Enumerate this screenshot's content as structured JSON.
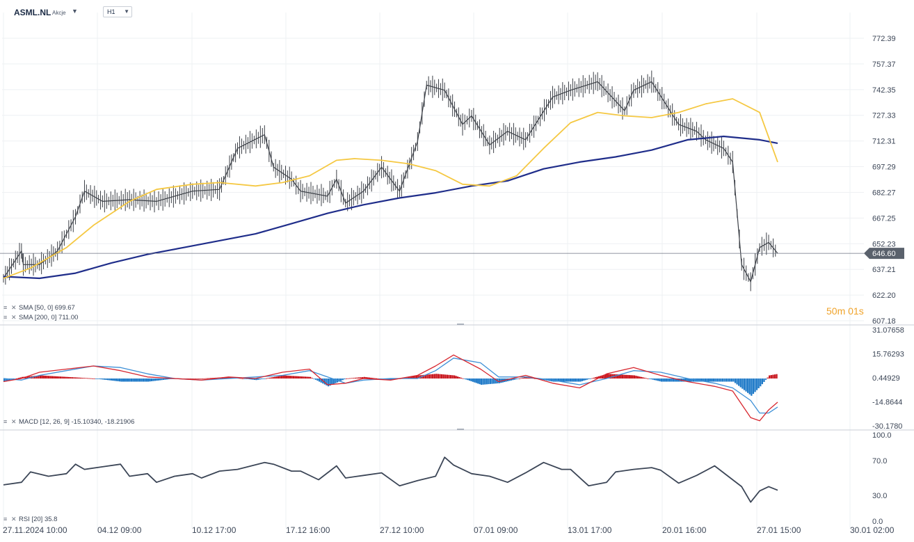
{
  "header": {
    "symbol": "ASML.NL",
    "symbol_type": "Akcje",
    "timeframe": "H1"
  },
  "timer": "50m 01s",
  "price_panel": {
    "last_price_label": "646.60",
    "last_price": 646.6,
    "yticks": [
      "772.39",
      "757.37",
      "742.35",
      "727.33",
      "712.31",
      "697.29",
      "682.27",
      "667.25",
      "652.23",
      "637.21",
      "622.20",
      "607.18"
    ],
    "ylim": [
      607.18,
      772.39
    ],
    "legend": [
      {
        "label": "SMA  [50, 0]  699.67",
        "color": "#f5c842"
      },
      {
        "label": "SMA  [200, 0]  711.00",
        "color": "#1f2d8a"
      }
    ]
  },
  "macd_panel": {
    "yticks": [
      "31.07658",
      "15.76293",
      "0.44929",
      "-14.8644",
      "-30.1780"
    ],
    "ylim": [
      -30.178,
      31.07658
    ],
    "legend": "MACD  [12, 26, 9]  -15.10340,  -18.21906",
    "colors": {
      "macd": "#d7262e",
      "signal": "#3c8fd6",
      "hist_pos": "#c8141c",
      "hist_neg": "#1f7ac8"
    }
  },
  "rsi_panel": {
    "yticks": [
      "100.0",
      "70.0",
      "30.0",
      "0.0"
    ],
    "ylim": [
      0,
      100
    ],
    "legend": "RSI  [20]  35.8",
    "color": "#3b4556"
  },
  "xaxis": {
    "labels": [
      "27.11.2024  10:00",
      "04.12  09:00",
      "10.12  17:00",
      "17.12  16:00",
      "27.12  10:00",
      "07.01  09:00",
      "13.01  17:00",
      "20.01  16:00",
      "27.01  15:00",
      "30.01  02:00"
    ]
  },
  "chart_data": [
    {
      "type": "line",
      "title": "",
      "ylim": [
        607.18,
        772.39
      ],
      "series": [
        {
          "name": "SMA [50, 0]",
          "color": "#f5c842",
          "x": [
            0,
            3,
            7,
            10,
            14,
            17,
            21,
            24,
            28,
            31,
            34,
            37,
            39,
            42,
            45,
            48,
            51,
            54,
            57,
            60,
            63,
            66,
            69,
            72,
            75,
            78,
            81,
            84,
            86
          ],
          "values": [
            632,
            638,
            650,
            663,
            677,
            684,
            687,
            688,
            686,
            688,
            692,
            701,
            702,
            701,
            699,
            695,
            687,
            686,
            692,
            708,
            723,
            729,
            727,
            726,
            729,
            734,
            737,
            729,
            700
          ]
        },
        {
          "name": "SMA [200, 0]",
          "color": "#1f2d8a",
          "x": [
            0,
            4,
            8,
            12,
            16,
            20,
            24,
            28,
            32,
            36,
            40,
            44,
            48,
            52,
            56,
            60,
            64,
            68,
            72,
            76,
            80,
            84,
            86
          ],
          "values": [
            633,
            632,
            635,
            641,
            646,
            650,
            654,
            658,
            664,
            670,
            675,
            679,
            682,
            686,
            689,
            696,
            700,
            703,
            707,
            713,
            715,
            713,
            711
          ]
        },
        {
          "name": "Price",
          "color": "#333333",
          "x": [
            0,
            2,
            2.2,
            4,
            6,
            7,
            8,
            9,
            11,
            14,
            17,
            21,
            24,
            26,
            29,
            30,
            32,
            33,
            36,
            37,
            38,
            40,
            42,
            44,
            46,
            47,
            49,
            51,
            52,
            54,
            56,
            58,
            61,
            63,
            66,
            69,
            70,
            72,
            75,
            77,
            78,
            80,
            81,
            82,
            83,
            84,
            85,
            86
          ],
          "values": [
            632,
            648,
            640,
            640,
            648,
            658,
            668,
            683,
            677,
            678,
            677,
            683,
            684,
            708,
            716,
            697,
            690,
            683,
            680,
            690,
            676,
            683,
            697,
            683,
            712,
            745,
            742,
            722,
            727,
            710,
            718,
            713,
            738,
            742,
            747,
            730,
            742,
            747,
            722,
            718,
            713,
            708,
            700,
            640,
            630,
            650,
            653,
            646.6
          ]
        }
      ]
    },
    {
      "type": "bar",
      "title": "",
      "ylim": [
        -30.178,
        31.07658
      ],
      "series": [
        {
          "name": "MACD [12, 26, 9]",
          "x": [
            0,
            2,
            4,
            7,
            10,
            13,
            16,
            19,
            22,
            25,
            28,
            31,
            34,
            36,
            38,
            40,
            43,
            46,
            48,
            50,
            53,
            55,
            58,
            61,
            64,
            67,
            70,
            73,
            76,
            79,
            81,
            83,
            84,
            85,
            86
          ],
          "values": [
            -2,
            0,
            4,
            6,
            8,
            5,
            1,
            0,
            -1,
            1,
            0,
            4,
            6,
            -4,
            -3,
            0,
            -1,
            2,
            8,
            15,
            6,
            -2,
            2,
            -3,
            -6,
            3,
            7,
            2,
            -2,
            -5,
            -8,
            -25,
            -27,
            -20,
            -15.1
          ]
        },
        {
          "name": "Signal",
          "x": [
            0,
            2,
            4,
            7,
            10,
            13,
            16,
            19,
            22,
            25,
            28,
            31,
            34,
            36,
            38,
            40,
            43,
            46,
            48,
            50,
            53,
            55,
            58,
            61,
            64,
            67,
            70,
            73,
            76,
            79,
            81,
            83,
            84,
            85,
            86
          ],
          "values": [
            0,
            -1,
            2,
            5,
            8,
            7,
            3,
            0,
            -1,
            0,
            1,
            2,
            5,
            1,
            -3,
            -1,
            0,
            0,
            5,
            13,
            10,
            1,
            1,
            -1,
            -4,
            0,
            5,
            4,
            0,
            -3,
            -6,
            -14,
            -22,
            -22,
            -18.2
          ]
        },
        {
          "name": "Histogram",
          "x": [
            0,
            2,
            4,
            7,
            10,
            13,
            16,
            19,
            22,
            25,
            28,
            31,
            34,
            36,
            38,
            40,
            43,
            46,
            48,
            50,
            53,
            55,
            58,
            61,
            64,
            67,
            70,
            73,
            76,
            79,
            81,
            83,
            84,
            85,
            86
          ],
          "values": [
            -2,
            1,
            2,
            1,
            0,
            -2,
            -2,
            0,
            0,
            1,
            -1,
            2,
            1,
            -5,
            0,
            1,
            -1,
            2,
            3,
            2,
            -4,
            -3,
            1,
            -2,
            -2,
            3,
            2,
            -2,
            -2,
            -2,
            -2,
            -11,
            -5,
            2,
            3
          ]
        }
      ]
    },
    {
      "type": "line",
      "title": "",
      "ylim": [
        0,
        100
      ],
      "series": [
        {
          "name": "RSI [20]",
          "x": [
            0,
            2,
            3,
            5,
            7,
            8,
            9,
            11,
            13,
            14,
            16,
            17,
            19,
            21,
            22,
            24,
            26,
            29,
            30,
            32,
            33,
            35,
            37,
            38,
            40,
            42,
            44,
            46,
            48,
            49,
            50,
            52,
            54,
            56,
            58,
            60,
            62,
            63,
            65,
            67,
            68,
            70,
            72,
            73,
            75,
            77,
            79,
            81,
            82,
            83,
            84,
            85,
            86
          ],
          "values": [
            42,
            45,
            57,
            52,
            55,
            66,
            60,
            63,
            66,
            52,
            55,
            45,
            52,
            55,
            50,
            58,
            60,
            68,
            66,
            58,
            58,
            48,
            64,
            50,
            53,
            56,
            41,
            47,
            52,
            74,
            65,
            55,
            52,
            45,
            56,
            68,
            60,
            60,
            41,
            45,
            57,
            60,
            62,
            59,
            44,
            53,
            64,
            48,
            40,
            22,
            35,
            40,
            35.8
          ]
        }
      ]
    }
  ]
}
